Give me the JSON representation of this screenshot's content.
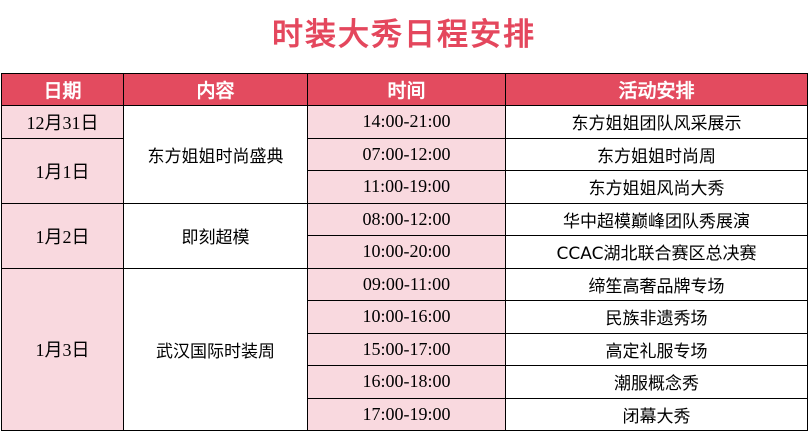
{
  "title": "时装大秀日程安排",
  "colors": {
    "header_bg": "#e34b5f",
    "title": "#e4475d",
    "pink_cell": "#f9d9df"
  },
  "headers": [
    "日期",
    "内容",
    "时间",
    "活动安排"
  ],
  "dates": [
    "12月31日",
    "1月1日",
    "1月2日",
    "1月3日"
  ],
  "contents": [
    "东方姐姐时尚盛典",
    "即刻超模",
    "武汉国际时装周"
  ],
  "rows": [
    {
      "time": "14:00-21:00",
      "activity": "东方姐姐团队风采展示"
    },
    {
      "time": "07:00-12:00",
      "activity": "东方姐姐时尚周"
    },
    {
      "time": "11:00-19:00",
      "activity": "东方姐姐风尚大秀"
    },
    {
      "time": "08:00-12:00",
      "activity": "华中超模巅峰团队秀展演"
    },
    {
      "time": "10:00-20:00",
      "activity": "CCAC湖北联合赛区总决赛"
    },
    {
      "time": "09:00-11:00",
      "activity": "缔笙高奢品牌专场"
    },
    {
      "time": "10:00-16:00",
      "activity": "民族非遗秀场"
    },
    {
      "time": "15:00-17:00",
      "activity": "高定礼服专场"
    },
    {
      "time": "16:00-18:00",
      "activity": "潮服概念秀"
    },
    {
      "time": "17:00-19:00",
      "activity": "闭幕大秀"
    }
  ]
}
